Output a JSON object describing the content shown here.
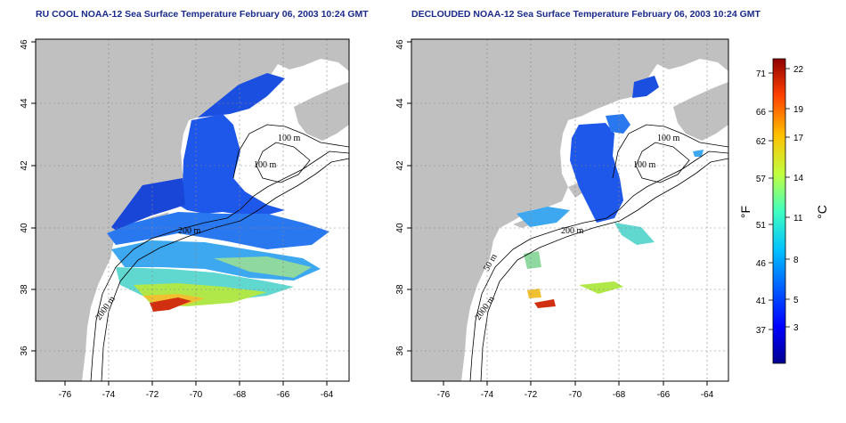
{
  "panels": [
    {
      "title": "RU COOL NOAA-12 Sea Surface Temperature February 06, 2003 10:24 GMT",
      "contours": [
        "100 m",
        "100 m",
        "200 m",
        "2000 m"
      ]
    },
    {
      "title": "DECLOUDED NOAA-12 Sea Surface Temperature February 06, 2003 10:24 GMT",
      "contours": [
        "100 m",
        "100 m",
        "200 m",
        "2000 m",
        "50 m"
      ]
    }
  ],
  "axes": {
    "x_ticks": [
      "-76",
      "-74",
      "-72",
      "-70",
      "-68",
      "-66",
      "-64"
    ],
    "y_ticks": [
      "36",
      "38",
      "40",
      "42",
      "44",
      "46"
    ]
  },
  "colorbar": {
    "fahrenheit_label": "°F",
    "celsius_label": "°C",
    "fahrenheit_ticks": [
      "71",
      "66",
      "62",
      "57",
      "51",
      "46",
      "41",
      "37"
    ],
    "celsius_ticks": [
      "22",
      "19",
      "17",
      "14",
      "11",
      "8",
      "5",
      "3"
    ],
    "colors": [
      "#00008f",
      "#0000ff",
      "#0060ff",
      "#00c0ff",
      "#40ffc0",
      "#c0ff40",
      "#ffc000",
      "#ff4000",
      "#8f0000"
    ]
  },
  "colors": {
    "land": "#c0c0c0",
    "ocean": "#ffffff",
    "title": "#1a2a8c"
  }
}
